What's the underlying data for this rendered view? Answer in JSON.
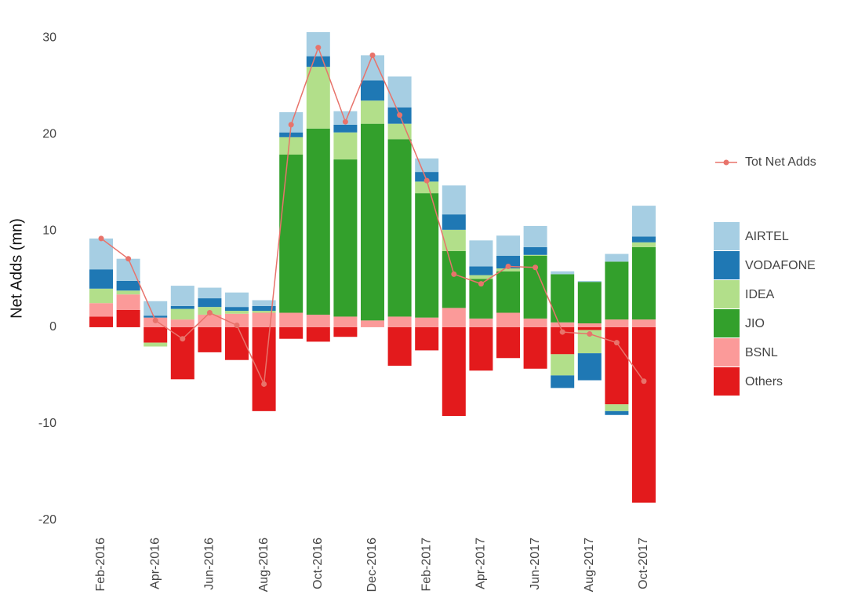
{
  "chart_data": {
    "type": "bar",
    "stacked": true,
    "y_label": "Net Adds (mn)",
    "categories": [
      "Feb-2016",
      null,
      "Apr-2016",
      null,
      "Jun-2016",
      null,
      "Aug-2016",
      null,
      "Oct-2016",
      null,
      "Dec-2016",
      null,
      "Feb-2017",
      null,
      "Apr-2017",
      null,
      "Jun-2017",
      null,
      "Aug-2017",
      null,
      "Oct-2017"
    ],
    "series": [
      {
        "name": "AIRTEL",
        "color": "#a6cee3",
        "values": [
          3.2,
          2.3,
          1.5,
          2.1,
          1.1,
          1.5,
          0.6,
          2.1,
          2.5,
          1.4,
          2.6,
          3.2,
          1.4,
          3.0,
          2.7,
          2.1,
          2.2,
          0.3,
          0.1,
          0.8,
          3.2
        ]
      },
      {
        "name": "VODAFONE",
        "color": "#1f78b4",
        "values": [
          2.0,
          1.0,
          0.2,
          0.3,
          0.9,
          0.4,
          0.5,
          0.5,
          1.1,
          0.8,
          2.1,
          1.7,
          1.0,
          1.6,
          0.9,
          1.3,
          0.8,
          -1.3,
          -2.8,
          -0.4,
          0.6
        ]
      },
      {
        "name": "IDEA",
        "color": "#b2df8a",
        "values": [
          1.5,
          0.4,
          -0.4,
          1.1,
          0.8,
          0.3,
          0.2,
          1.8,
          6.4,
          2.8,
          2.4,
          1.6,
          1.2,
          2.2,
          0.4,
          0.3,
          0.1,
          -2.2,
          -2.4,
          -0.7,
          0.5
        ]
      },
      {
        "name": "JIO",
        "color": "#33a02c",
        "values": [
          0,
          0,
          0,
          0,
          0,
          0,
          0,
          16.4,
          19.3,
          16.3,
          20.4,
          18.4,
          12.9,
          5.9,
          4.1,
          4.3,
          6.5,
          5.0,
          4.3,
          6.0,
          7.5
        ]
      },
      {
        "name": "BSNL",
        "color": "#fb9a99",
        "values": [
          1.4,
          1.6,
          1.0,
          0.8,
          1.3,
          1.4,
          1.5,
          1.5,
          1.3,
          1.1,
          0.7,
          1.1,
          1.0,
          2.0,
          0.9,
          1.5,
          0.9,
          0.5,
          0.4,
          0.8,
          0.8
        ]
      },
      {
        "name": "Others",
        "color": "#e31a1c",
        "values": [
          1.1,
          1.8,
          -1.6,
          -5.4,
          -2.6,
          -3.4,
          -8.7,
          -1.2,
          -1.5,
          -1.0,
          0,
          -4.0,
          -2.4,
          -9.2,
          -4.5,
          -3.2,
          -4.3,
          -2.8,
          -0.3,
          -8.0,
          -18.2
        ]
      },
      {
        "name": "Tot Net Adds",
        "type": "line",
        "color": "#e8736b",
        "values": [
          9.2,
          7.1,
          0.7,
          -1.2,
          1.5,
          0.2,
          -5.9,
          21.0,
          29.0,
          21.3,
          28.2,
          22.0,
          15.2,
          5.5,
          4.5,
          6.3,
          6.2,
          -0.5,
          -0.7,
          -1.6,
          -5.6
        ]
      }
    ],
    "ylim": [
      -21,
      31
    ],
    "yticks": [
      -20,
      -10,
      0,
      10,
      20,
      30
    ],
    "grid": false
  }
}
